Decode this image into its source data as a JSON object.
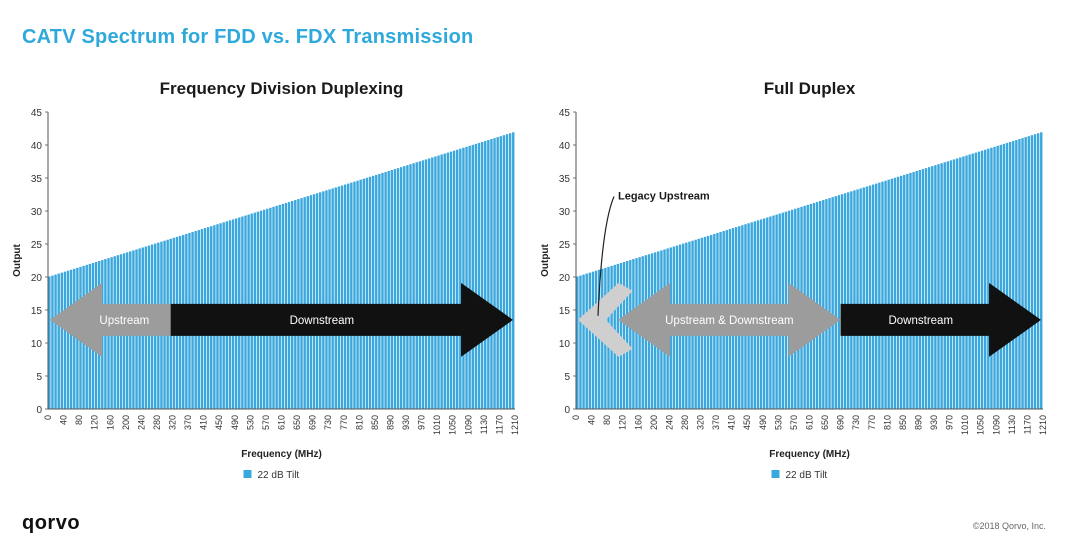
{
  "header": {
    "title": "CATV Spectrum for FDD vs. FDX Transmission"
  },
  "footer": {
    "logo": "qorvo",
    "copyright": "©2018 Qorvo, Inc."
  },
  "colors": {
    "bar": "#3aa7dd",
    "title": "#2fa9dc",
    "arrow_dark": "#111111",
    "arrow_gray": "#9c9c9c",
    "arrow_light": "#cfcfcf"
  },
  "chart_data": [
    {
      "type": "bar",
      "title": "Frequency Division Duplexing",
      "xlabel": "Frequency (MHz)",
      "ylabel": "Output",
      "ylim": [
        0,
        45
      ],
      "y_ticks": [
        0,
        5,
        10,
        15,
        20,
        25,
        30,
        35,
        40,
        45
      ],
      "x_tick_labels": [
        "0",
        "40",
        "80",
        "120",
        "160",
        "200",
        "240",
        "280",
        "320",
        "370",
        "410",
        "450",
        "490",
        "530",
        "570",
        "610",
        "650",
        "690",
        "730",
        "770",
        "810",
        "850",
        "890",
        "930",
        "970",
        "1010",
        "1050",
        "1090",
        "1130",
        "1170",
        "1210"
      ],
      "x_range": [
        0,
        1218
      ],
      "series": [
        {
          "name": "22 dB Tilt",
          "x_start": 0,
          "x_end": 1218,
          "y_start": 20,
          "y_end": 42,
          "note": "Output rises linearly by 22 dB across frequency"
        }
      ],
      "legend": {
        "position": "bottom-center",
        "entries": [
          "22 dB Tilt"
        ]
      },
      "annotations": [
        {
          "label": "Upstream",
          "direction": "left",
          "color": "gray",
          "from_mhz": 0,
          "to_mhz": 320
        },
        {
          "label": "Downstream",
          "direction": "right",
          "color": "black",
          "from_mhz": 320,
          "to_mhz": 1218
        }
      ]
    },
    {
      "type": "bar",
      "title": "Full Duplex",
      "xlabel": "Frequency (MHz)",
      "ylabel": "Output",
      "ylim": [
        0,
        45
      ],
      "y_ticks": [
        0,
        5,
        10,
        15,
        20,
        25,
        30,
        35,
        40,
        45
      ],
      "x_tick_labels": [
        "0",
        "40",
        "80",
        "120",
        "160",
        "200",
        "240",
        "280",
        "320",
        "370",
        "410",
        "450",
        "490",
        "530",
        "570",
        "610",
        "650",
        "690",
        "730",
        "770",
        "810",
        "850",
        "890",
        "930",
        "970",
        "1010",
        "1050",
        "1090",
        "1130",
        "1170",
        "1210"
      ],
      "x_range": [
        0,
        1218
      ],
      "series": [
        {
          "name": "22 dB Tilt",
          "x_start": 0,
          "x_end": 1218,
          "y_start": 20,
          "y_end": 42,
          "note": "Output rises linearly by 22 dB across frequency"
        }
      ],
      "legend": {
        "position": "bottom-center",
        "entries": [
          "22 dB Tilt"
        ]
      },
      "annotations": [
        {
          "label": "Legacy Upstream",
          "direction": "left",
          "color": "light-gray",
          "from_mhz": 0,
          "to_mhz": 85
        },
        {
          "label": "Upstream & Downstream",
          "direction": "both",
          "color": "gray",
          "from_mhz": 110,
          "to_mhz": 690
        },
        {
          "label": "Downstream",
          "direction": "right",
          "color": "black",
          "from_mhz": 690,
          "to_mhz": 1218
        }
      ]
    }
  ]
}
